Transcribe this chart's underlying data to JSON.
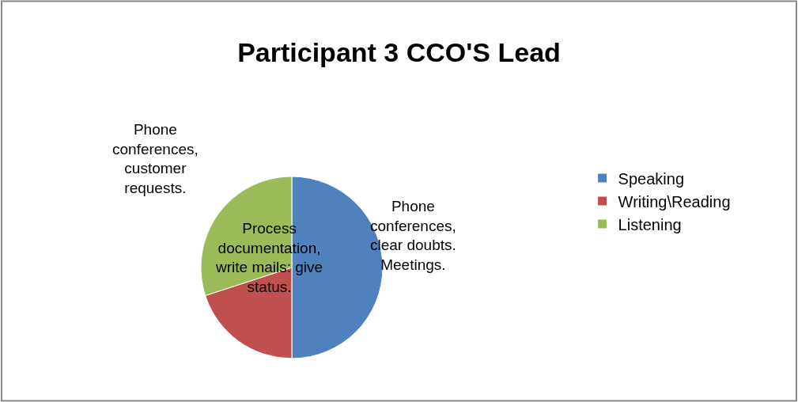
{
  "chart_data": {
    "type": "pie",
    "title": "Participant 3 CCO'S Lead",
    "categories": [
      "Speaking",
      "Writing\\Reading",
      "Listening"
    ],
    "values": [
      50,
      20,
      30
    ],
    "colors": [
      "#4f81bd",
      "#c0504d",
      "#9bbb59"
    ],
    "legend": "right",
    "annotations": [
      "Phone\nconferences,\nclear doubts.\nMeetings.",
      "Process\ndocumentation,\nwrite mails: give\nstatus.",
      "Phone\nconferences,\ncustomer\nrequests."
    ]
  }
}
